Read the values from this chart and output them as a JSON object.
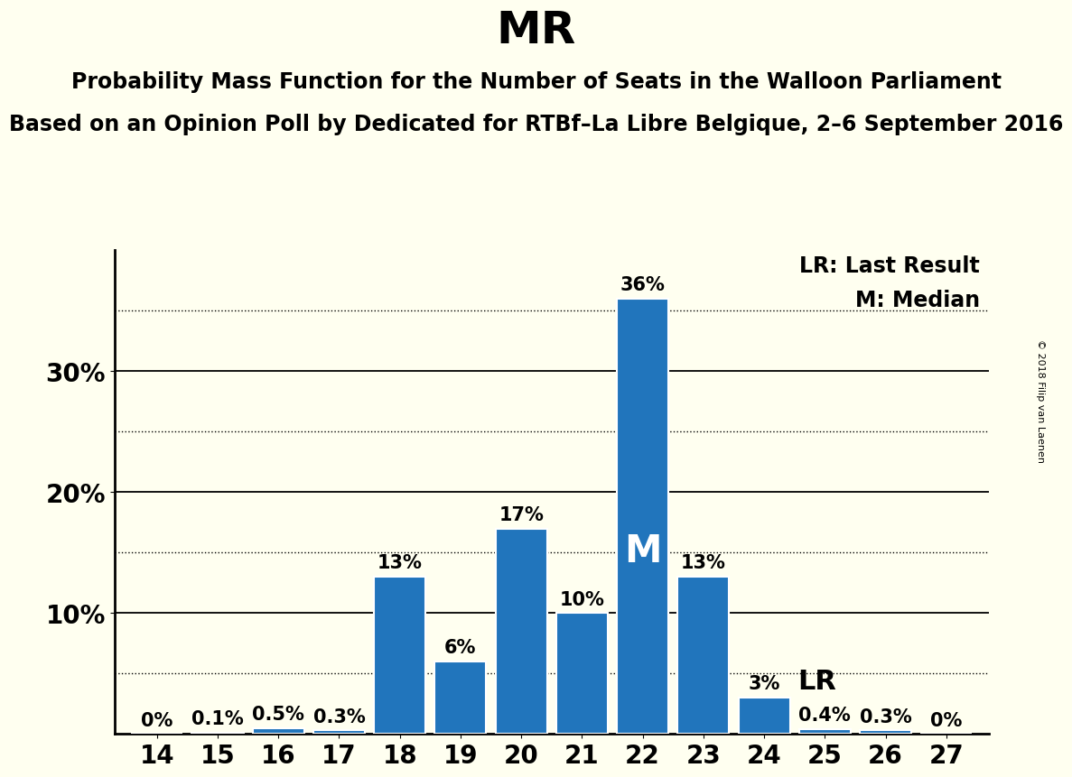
{
  "title": "MR",
  "subtitle1": "Probability Mass Function for the Number of Seats in the Walloon Parliament",
  "subtitle2": "Based on an Opinion Poll by Dedicated for RTBf–La Libre Belgique, 2–6 September 2016",
  "copyright": "© 2018 Filip van Laenen",
  "seats": [
    14,
    15,
    16,
    17,
    18,
    19,
    20,
    21,
    22,
    23,
    24,
    25,
    26,
    27
  ],
  "probabilities": [
    0.0,
    0.1,
    0.5,
    0.3,
    13.0,
    6.0,
    17.0,
    10.0,
    36.0,
    13.0,
    3.0,
    0.4,
    0.3,
    0.0
  ],
  "labels": [
    "0%",
    "0.1%",
    "0.5%",
    "0.3%",
    "13%",
    "6%",
    "17%",
    "10%",
    "36%",
    "13%",
    "3%",
    "0.4%",
    "0.3%",
    "0%"
  ],
  "bar_color": "#2175BC",
  "background_color": "#FFFFF0",
  "median_seat": 22,
  "last_result_seat": 24,
  "legend_lr": "LR: Last Result",
  "legend_m": "M: Median",
  "solid_lines": [
    10,
    20,
    30
  ],
  "dotted_lines": [
    5,
    15,
    25,
    35
  ],
  "ytick_labels": [
    "10%",
    "20%",
    "30%"
  ],
  "ytick_positions": [
    10,
    20,
    30
  ],
  "ylim": [
    0,
    40
  ],
  "xlim": [
    13.3,
    27.7
  ],
  "title_fontsize": 36,
  "subtitle_fontsize": 17,
  "label_fontsize": 15,
  "tick_fontsize": 20,
  "legend_fontsize": 17,
  "median_fontsize": 30,
  "lr_fontsize": 22
}
